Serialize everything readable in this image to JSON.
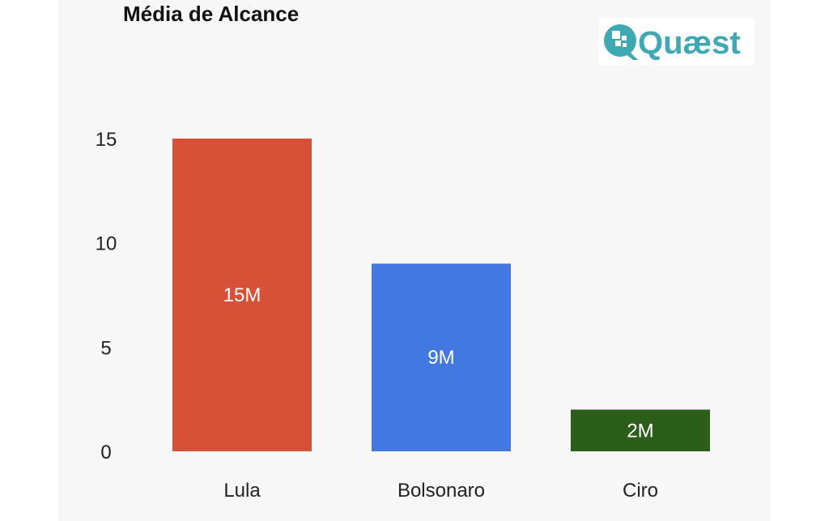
{
  "chart_data": {
    "type": "bar",
    "title": "Média de Alcance",
    "xlabel": "",
    "ylabel": "",
    "categories": [
      "Lula",
      "Bolsonaro",
      "Ciro"
    ],
    "values": [
      15,
      9,
      2
    ],
    "data_labels": [
      "15M",
      "9M",
      "2M"
    ],
    "colors": [
      "#d65138",
      "#4278e0",
      "#2b5f19"
    ],
    "ylim": [
      0,
      15
    ],
    "yticks": [
      0,
      5,
      10,
      15
    ],
    "grid": false,
    "legend": "none"
  },
  "logo": {
    "text": "Quæst",
    "color": "#3ea9b3",
    "icon": "quaest-logo-icon"
  }
}
